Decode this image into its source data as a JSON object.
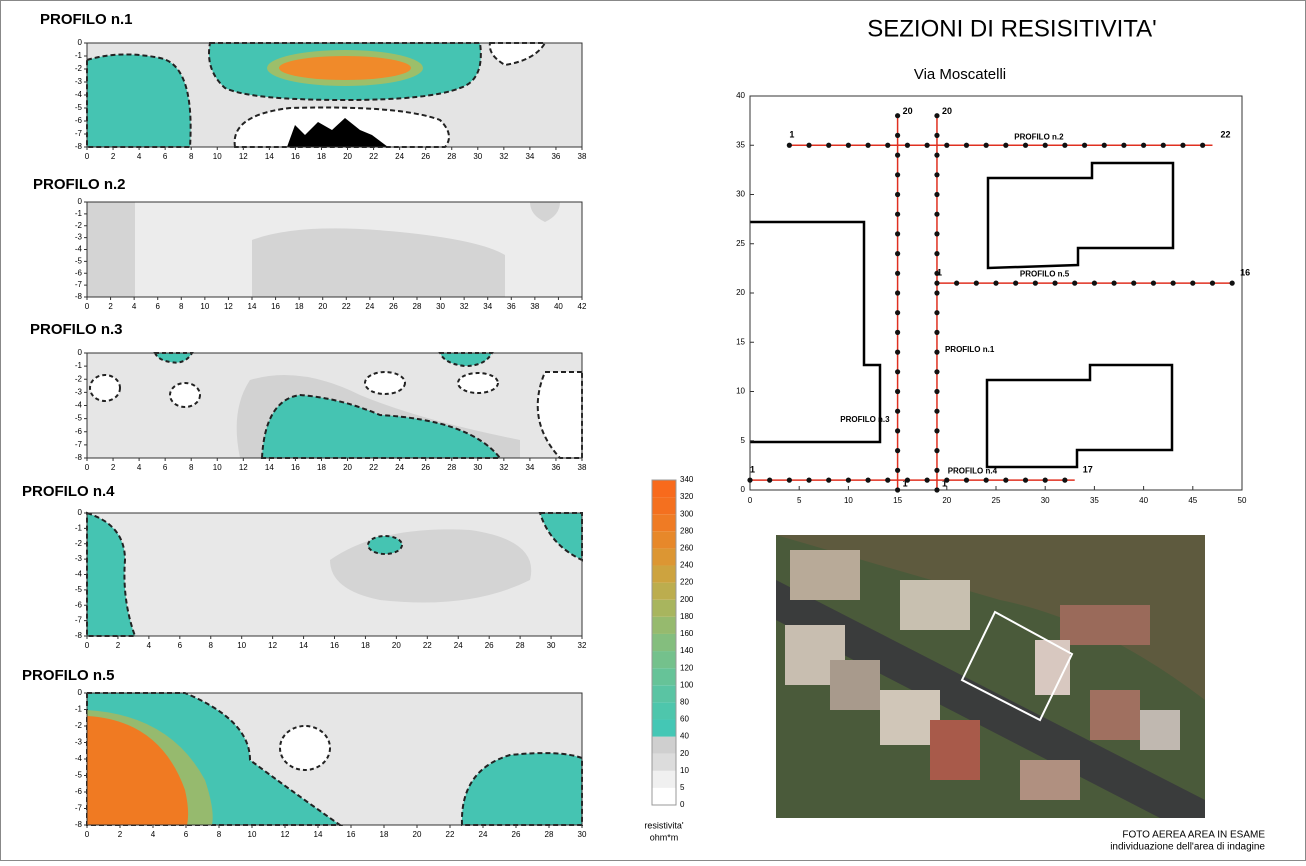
{
  "header": {
    "title": "SEZIONI DI RESISITIVITA'"
  },
  "profiles": [
    {
      "title": "PROFILO n.1",
      "xticks": [
        0,
        2,
        4,
        6,
        8,
        10,
        12,
        14,
        16,
        18,
        20,
        22,
        24,
        26,
        28,
        30,
        32,
        34,
        36,
        38
      ],
      "yticks": [
        0,
        -1,
        -2,
        -3,
        -4,
        -5,
        -6,
        -7,
        -8
      ]
    },
    {
      "title": "PROFILO n.2",
      "xticks": [
        0,
        2,
        4,
        6,
        8,
        10,
        12,
        14,
        16,
        18,
        20,
        22,
        24,
        26,
        28,
        30,
        32,
        34,
        36,
        38,
        40,
        42
      ],
      "yticks": [
        0,
        -1,
        -2,
        -3,
        -4,
        -5,
        -6,
        -7,
        -8
      ]
    },
    {
      "title": "PROFILO n.3",
      "xticks": [
        0,
        2,
        4,
        6,
        8,
        10,
        12,
        14,
        16,
        18,
        20,
        22,
        24,
        26,
        28,
        30,
        32,
        34,
        36,
        38
      ],
      "yticks": [
        0,
        -1,
        -2,
        -3,
        -4,
        -5,
        -6,
        -7,
        -8
      ]
    },
    {
      "title": "PROFILO n.4",
      "xticks": [
        0,
        2,
        4,
        6,
        8,
        10,
        12,
        14,
        16,
        18,
        20,
        22,
        24,
        26,
        28,
        30,
        32
      ],
      "yticks": [
        0,
        -1,
        -2,
        -3,
        -4,
        -5,
        -6,
        -7,
        -8
      ]
    },
    {
      "title": "PROFILO n.5",
      "xticks": [
        0,
        2,
        4,
        6,
        8,
        10,
        12,
        14,
        16,
        18,
        20,
        22,
        24,
        26,
        28,
        30
      ],
      "yticks": [
        0,
        -1,
        -2,
        -3,
        -4,
        -5,
        -6,
        -7,
        -8
      ]
    }
  ],
  "colorbar": {
    "ticks": [
      0,
      5,
      10,
      20,
      40,
      60,
      80,
      100,
      120,
      140,
      160,
      180,
      200,
      220,
      240,
      260,
      280,
      300,
      320,
      340
    ],
    "colors": [
      "#ffffff",
      "#f0f0f0",
      "#dcdcdc",
      "#cfcfcf",
      "#44c7b5",
      "#4ec6ac",
      "#5ac4a3",
      "#66c398",
      "#74c18c",
      "#84be7e",
      "#96ba6e",
      "#a8b55e",
      "#bcad4e",
      "#cda33f",
      "#dc9633",
      "#e7882a",
      "#ef7b24",
      "#f4701f",
      "#f86a1c"
    ],
    "label": [
      "resistivita'",
      "ohm*m"
    ]
  },
  "map": {
    "subtitle": "Via Moscatelli",
    "xticks": [
      0,
      5,
      10,
      15,
      20,
      25,
      30,
      35,
      40,
      45,
      50
    ],
    "yticks": [
      0,
      5,
      10,
      15,
      20,
      25,
      30,
      35,
      40
    ],
    "lines": [
      {
        "name": "PROFILO n.2",
        "start": "1",
        "end": "22",
        "from": [
          4,
          35
        ],
        "to": [
          47,
          35
        ]
      },
      {
        "name": "PROFILO n.3",
        "start": "1",
        "end": "20",
        "from": [
          15,
          0
        ],
        "to": [
          15,
          38
        ]
      },
      {
        "name": "PROFILO n.1",
        "start": "1",
        "end": "20",
        "from": [
          19,
          0
        ],
        "to": [
          19,
          38
        ]
      },
      {
        "name": "PROFILO n.5",
        "start": "1",
        "end": "16",
        "from": [
          19,
          21
        ],
        "to": [
          49,
          21
        ]
      },
      {
        "name": "PROFILO n.4",
        "start": "1",
        "end": "17",
        "from": [
          0,
          1
        ],
        "to": [
          33,
          1
        ]
      }
    ]
  },
  "photo": {
    "caption": [
      "FOTO AEREA AREA IN ESAME",
      "individuazione dell'area di indagine"
    ]
  }
}
